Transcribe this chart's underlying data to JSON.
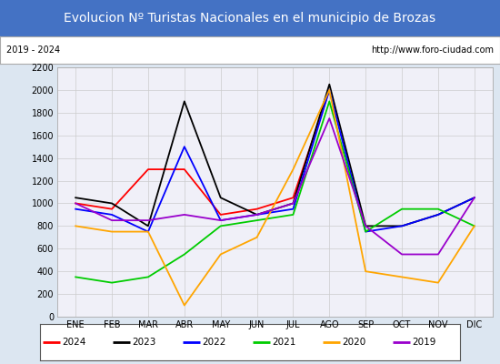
{
  "title": "Evolucion Nº Turistas Nacionales en el municipio de Brozas",
  "subtitle_left": "2019 - 2024",
  "subtitle_right": "http://www.foro-ciudad.com",
  "months": [
    "ENE",
    "FEB",
    "MAR",
    "ABR",
    "MAY",
    "JUN",
    "JUL",
    "AGO",
    "SEP",
    "OCT",
    "NOV",
    "DIC"
  ],
  "series": {
    "2024": [
      1000,
      950,
      1300,
      1300,
      900,
      950,
      1050,
      2000,
      null,
      null,
      null,
      null
    ],
    "2023": [
      1050,
      1000,
      800,
      1900,
      1050,
      900,
      1000,
      2050,
      800,
      800,
      900,
      1050
    ],
    "2022": [
      950,
      900,
      750,
      1500,
      850,
      900,
      950,
      2000,
      750,
      800,
      900,
      1050
    ],
    "2021": [
      350,
      300,
      350,
      550,
      800,
      850,
      900,
      1900,
      750,
      950,
      950,
      800
    ],
    "2020": [
      800,
      750,
      750,
      100,
      550,
      700,
      1300,
      2000,
      400,
      350,
      300,
      800
    ],
    "2019": [
      1000,
      850,
      850,
      900,
      850,
      900,
      1000,
      1750,
      800,
      550,
      550,
      1050
    ]
  },
  "colors": {
    "2024": "#ff0000",
    "2023": "#000000",
    "2022": "#0000ff",
    "2021": "#00cc00",
    "2020": "#ffa500",
    "2019": "#9900cc"
  },
  "ylim": [
    0,
    2200
  ],
  "yticks": [
    0,
    200,
    400,
    600,
    800,
    1000,
    1200,
    1400,
    1600,
    1800,
    2000,
    2200
  ],
  "title_bg_color": "#4472c4",
  "title_font_color": "#ffffff",
  "plot_bg_color": "#f0f0f8",
  "outer_bg_color": "#dce6f1",
  "border_color": "#aaaaaa",
  "title_fontsize": 10,
  "subtitle_fontsize": 7,
  "axis_fontsize": 7
}
